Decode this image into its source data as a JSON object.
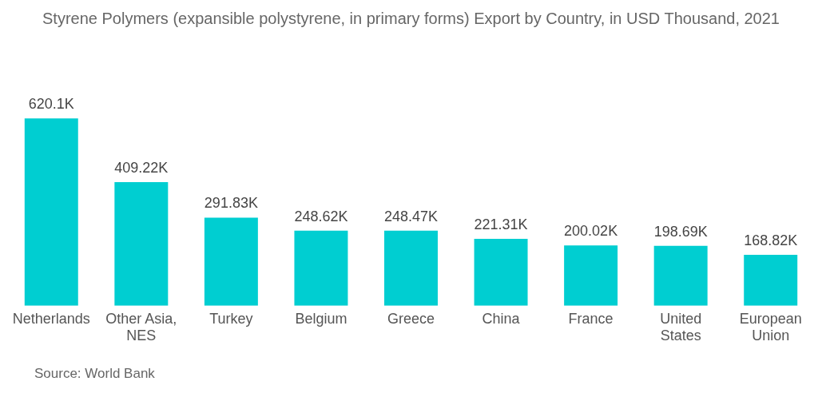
{
  "chart_data": {
    "type": "bar",
    "title": "Styrene Polymers (expansible polystyrene, in primary forms) Export by Country, in USD Thousand, 2021",
    "categories": [
      "Netherlands",
      "Other Asia, NES",
      "Turkey",
      "Belgium",
      "Greece",
      "China",
      "France",
      "United States",
      "European Union"
    ],
    "values": [
      620.1,
      409.22,
      291.83,
      248.62,
      248.47,
      221.31,
      200.02,
      198.69,
      168.82
    ],
    "value_labels": [
      "620.1K",
      "409.22K",
      "291.83K",
      "248.62K",
      "248.47K",
      "221.31K",
      "200.02K",
      "198.69K",
      "168.82K"
    ],
    "color": "#00ced1",
    "grid": false,
    "legend": false,
    "annotations": [
      "Source: World Bank"
    ]
  }
}
